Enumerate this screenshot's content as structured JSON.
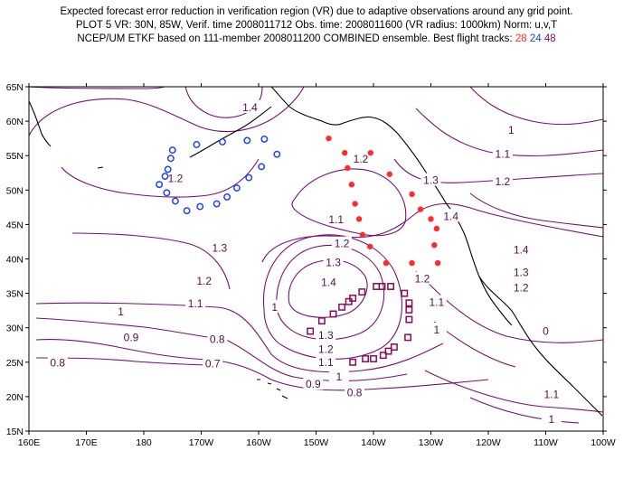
{
  "header": {
    "line1": "Expected forecast error reduction in verification region (VR) due to adaptive observations around any grid point.",
    "line2": "PLOT 5 VR: 30N, 85W, Verif. time 2008011712 Obs. time: 2008011600 (VR radius: 1000km) Norm: u,v,T",
    "line3_prefix": "NCEP/UM ETKF based on 111-member 2008011200 COMBINED ensemble.  Best flight tracks:",
    "tracks": [
      "28",
      "24",
      "48"
    ]
  },
  "colors": {
    "track_28": "#ff2a2a",
    "track_24": "#1f3fff",
    "track_48": "#8a0a5c",
    "contour": "#7a0f72",
    "coast": "#000000"
  },
  "map": {
    "lon_ticks": [
      "160E",
      "170E",
      "180",
      "170W",
      "160W",
      "150W",
      "140W",
      "130W",
      "120W",
      "110W",
      "100W"
    ],
    "lat_ticks": [
      "15N",
      "20N",
      "25N",
      "30N",
      "35N",
      "40N",
      "45N",
      "50N",
      "55N",
      "60N",
      "65N"
    ],
    "contour_labels": [
      {
        "text": "1.4",
        "lon": -161.5,
        "lat": 62.0
      },
      {
        "text": "1",
        "lon": -116.0,
        "lat": 58.7
      },
      {
        "text": "1.2",
        "lon": -174.5,
        "lat": 51.7
      },
      {
        "text": "1.1",
        "lon": -117.5,
        "lat": 55.2
      },
      {
        "text": "1.2",
        "lon": -117.5,
        "lat": 51.2
      },
      {
        "text": "1.2",
        "lon": -142.2,
        "lat": 54.5
      },
      {
        "text": "1.3",
        "lon": -130.0,
        "lat": 51.4
      },
      {
        "text": "1.4",
        "lon": -126.5,
        "lat": 46.2
      },
      {
        "text": "1.1",
        "lon": -146.5,
        "lat": 45.7
      },
      {
        "text": "1.3",
        "lon": -166.8,
        "lat": 41.6
      },
      {
        "text": "1.2",
        "lon": -145.5,
        "lat": 42.2
      },
      {
        "text": "1.3",
        "lon": -147.0,
        "lat": 39.5
      },
      {
        "text": "1.4",
        "lon": -114.3,
        "lat": 41.3
      },
      {
        "text": "1.3",
        "lon": -114.3,
        "lat": 38.0
      },
      {
        "text": "1.2",
        "lon": -114.3,
        "lat": 35.8
      },
      {
        "text": "1.2",
        "lon": -169.5,
        "lat": 36.8
      },
      {
        "text": "1.4",
        "lon": -147.8,
        "lat": 36.6
      },
      {
        "text": "1.2",
        "lon": -131.5,
        "lat": 37.1
      },
      {
        "text": "1.1",
        "lon": -171.0,
        "lat": 33.5
      },
      {
        "text": "1",
        "lon": -157.2,
        "lat": 33.0
      },
      {
        "text": "1",
        "lon": -184.0,
        "lat": 32.3
      },
      {
        "text": "1.1",
        "lon": -129.0,
        "lat": 33.7
      },
      {
        "text": "1",
        "lon": -129.0,
        "lat": 29.7
      },
      {
        "text": "0.9",
        "lon": -182.2,
        "lat": 28.6
      },
      {
        "text": "0.8",
        "lon": -167.2,
        "lat": 28.3
      },
      {
        "text": "1.3",
        "lon": -148.3,
        "lat": 28.9
      },
      {
        "text": "1.2",
        "lon": -148.3,
        "lat": 26.9
      },
      {
        "text": "1.1",
        "lon": -148.3,
        "lat": 25.0
      },
      {
        "text": "1",
        "lon": -146.0,
        "lat": 22.9
      },
      {
        "text": "0.9",
        "lon": -150.5,
        "lat": 21.8
      },
      {
        "text": "0.8",
        "lon": -195.0,
        "lat": 24.9
      },
      {
        "text": "0.7",
        "lon": -168.0,
        "lat": 24.8
      },
      {
        "text": "0.8",
        "lon": -143.3,
        "lat": 20.6
      },
      {
        "text": "0",
        "lon": -110.0,
        "lat": 29.5
      },
      {
        "text": "1.1",
        "lon": -109.0,
        "lat": 20.3
      },
      {
        "text": "1",
        "lon": -109.0,
        "lat": 16.7
      }
    ],
    "track_28": [
      {
        "lon": -147.8,
        "lat": 57.5
      },
      {
        "lon": -145.0,
        "lat": 55.4
      },
      {
        "lon": -140.5,
        "lat": 55.4
      },
      {
        "lon": -144.5,
        "lat": 53.2
      },
      {
        "lon": -137.2,
        "lat": 52.3
      },
      {
        "lon": -143.8,
        "lat": 50.8
      },
      {
        "lon": -133.3,
        "lat": 49.4
      },
      {
        "lon": -143.2,
        "lat": 48.0
      },
      {
        "lon": -131.8,
        "lat": 47.2
      },
      {
        "lon": -142.5,
        "lat": 45.8
      },
      {
        "lon": -130.0,
        "lat": 45.8
      },
      {
        "lon": -141.9,
        "lat": 43.5
      },
      {
        "lon": -129.0,
        "lat": 44.4
      },
      {
        "lon": -140.6,
        "lat": 41.8
      },
      {
        "lon": -129.4,
        "lat": 42.0
      },
      {
        "lon": -137.8,
        "lat": 39.4
      },
      {
        "lon": -133.3,
        "lat": 39.4
      },
      {
        "lon": -128.8,
        "lat": 39.4
      }
    ],
    "track_24": [
      {
        "lon": -175.0,
        "lat": 55.8
      },
      {
        "lon": -170.8,
        "lat": 56.6
      },
      {
        "lon": -166.3,
        "lat": 57.0
      },
      {
        "lon": -162.0,
        "lat": 57.2
      },
      {
        "lon": -159.0,
        "lat": 57.4
      },
      {
        "lon": -175.3,
        "lat": 54.6
      },
      {
        "lon": -156.8,
        "lat": 55.2
      },
      {
        "lon": -175.8,
        "lat": 53.0
      },
      {
        "lon": -159.5,
        "lat": 53.4
      },
      {
        "lon": -176.3,
        "lat": 52.0
      },
      {
        "lon": -161.7,
        "lat": 51.8
      },
      {
        "lon": -177.3,
        "lat": 50.8
      },
      {
        "lon": -163.8,
        "lat": 50.3
      },
      {
        "lon": -176.0,
        "lat": 49.6
      },
      {
        "lon": -165.5,
        "lat": 49.0
      },
      {
        "lon": -174.5,
        "lat": 48.4
      },
      {
        "lon": -167.3,
        "lat": 48.0
      },
      {
        "lon": -170.2,
        "lat": 47.6
      },
      {
        "lon": -172.5,
        "lat": 47.0
      }
    ],
    "track_48": [
      {
        "lon": -151.0,
        "lat": 29.5
      },
      {
        "lon": -149.0,
        "lat": 31.0
      },
      {
        "lon": -147.0,
        "lat": 32.0
      },
      {
        "lon": -145.5,
        "lat": 33.0
      },
      {
        "lon": -144.3,
        "lat": 33.8
      },
      {
        "lon": -143.6,
        "lat": 34.3
      },
      {
        "lon": -142.0,
        "lat": 35.2
      },
      {
        "lon": -139.5,
        "lat": 36.0
      },
      {
        "lon": -138.5,
        "lat": 36.0
      },
      {
        "lon": -137.0,
        "lat": 36.0
      },
      {
        "lon": -134.6,
        "lat": 35.0
      },
      {
        "lon": -133.8,
        "lat": 33.6
      },
      {
        "lon": -133.8,
        "lat": 32.6
      },
      {
        "lon": -133.8,
        "lat": 31.2
      },
      {
        "lon": -134.0,
        "lat": 28.6
      },
      {
        "lon": -136.4,
        "lat": 27.2
      },
      {
        "lon": -137.4,
        "lat": 26.6
      },
      {
        "lon": -138.3,
        "lat": 26.0
      },
      {
        "lon": -140.0,
        "lat": 25.5
      },
      {
        "lon": -141.4,
        "lat": 25.5
      },
      {
        "lon": -143.6,
        "lat": 25.0
      }
    ]
  }
}
